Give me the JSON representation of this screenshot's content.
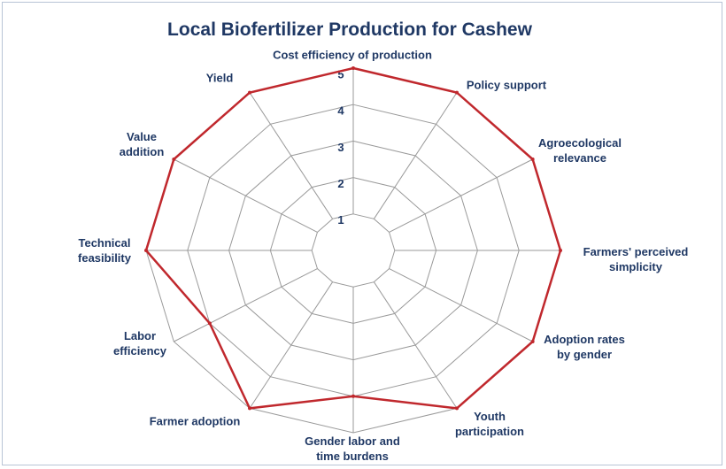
{
  "chart_data": {
    "type": "radar",
    "title": "Local Biofertilizer Production for Cashew",
    "categories": [
      "Cost efficiency of production",
      "Policy support",
      "Agroecological relevance",
      "Farmers' perceived simplicity",
      "Adoption rates by gender",
      "Youth participation",
      "Gender labor and time burdens",
      "Farmer adoption",
      "Labor efficiency",
      "Technical feasibility",
      "Value addition",
      "Yield"
    ],
    "series": [
      {
        "color": "#c0282d",
        "values": [
          5,
          5,
          5,
          5,
          5,
          5,
          4,
          5,
          4,
          5,
          5,
          5
        ]
      }
    ],
    "rlim": [
      0,
      5
    ],
    "rticks": [
      1,
      2,
      3,
      4,
      5
    ],
    "grid": true
  }
}
